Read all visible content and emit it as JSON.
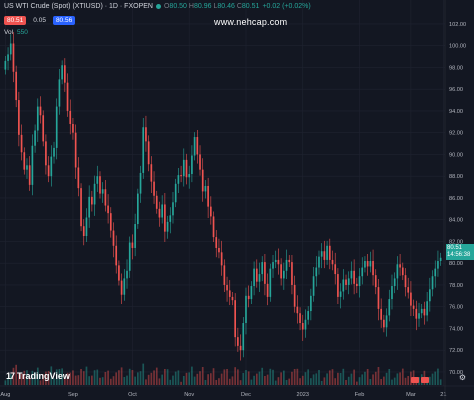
{
  "header": {
    "symbol": "US WTI Crude (Spot) (XTIUSD) · 1D · FXOPEN",
    "open_label": "O",
    "open_value": "80.50",
    "high_label": "H",
    "high_value": "80.96",
    "low_label": "L",
    "low_value": "80.46",
    "close_label": "C",
    "close_value": "80.51",
    "change": "+0.02 (+0.02%)"
  },
  "quote": {
    "bid": "80.51",
    "spread": "0.05",
    "ask": "80.56"
  },
  "volume": {
    "label": "Vol",
    "value": "550"
  },
  "watermark": "www.nehcap.com",
  "logo": {
    "mark": "17",
    "text": "TradingView"
  },
  "last_price": {
    "price": "80.51",
    "countdown": "14:56:38"
  },
  "settings": {
    "icon": "gear-icon"
  },
  "colors": {
    "up": "#26a69a",
    "down": "#ef5350",
    "background": "#131722",
    "grid": "#1f2330"
  },
  "chart_data": {
    "type": "candlestick",
    "title": "US WTI Crude (Spot) (XTIUSD) · 1D · FXOPEN",
    "y_axis": {
      "position": "right",
      "ticks": [
        70.0,
        72.0,
        74.0,
        76.0,
        78.0,
        80.0,
        82.0,
        84.0,
        86.0,
        88.0,
        90.0,
        92.0,
        94.0,
        96.0,
        98.0,
        100.0,
        102.0
      ],
      "ylim": [
        68.8,
        104.2
      ]
    },
    "x_axis": {
      "ticks": [
        "Aug",
        "Sep",
        "Oct",
        "Nov",
        "Dec",
        "2023",
        "Feb",
        "Mar",
        "21"
      ],
      "tick_index": [
        0,
        25,
        47,
        68,
        89,
        110,
        131,
        150,
        162
      ]
    },
    "grid": true,
    "last_value": 80.51,
    "close": [
      98.6,
      99.2,
      100.2,
      97.6,
      95.0,
      91.8,
      90.2,
      88.6,
      89.0,
      87.2,
      90.8,
      92.2,
      94.4,
      93.6,
      91.2,
      89.0,
      88.0,
      89.8,
      90.6,
      94.4,
      96.9,
      98.2,
      96.6,
      94.0,
      92.8,
      92.0,
      88.8,
      86.9,
      83.4,
      82.5,
      84.2,
      86.1,
      85.4,
      87.3,
      88.0,
      86.4,
      86.8,
      85.3,
      84.6,
      83.0,
      81.6,
      79.8,
      78.4,
      77.1,
      78.6,
      79.3,
      81.9,
      81.4,
      83.6,
      86.4,
      88.3,
      92.5,
      91.2,
      89.1,
      87.5,
      86.2,
      85.0,
      84.2,
      85.4,
      82.9,
      83.8,
      84.4,
      85.6,
      87.3,
      88.1,
      88.0,
      89.5,
      87.9,
      88.2,
      89.9,
      91.6,
      90.0,
      88.6,
      86.6,
      87.1,
      85.2,
      84.3,
      82.4,
      81.4,
      81.0,
      79.8,
      78.0,
      77.5,
      76.9,
      76.6,
      73.2,
      72.4,
      72.0,
      74.5,
      77.0,
      76.7,
      77.9,
      79.5,
      78.3,
      79.0,
      80.1,
      78.1,
      76.9,
      79.5,
      80.1,
      80.3,
      79.9,
      78.6,
      79.3,
      80.3,
      80.1,
      78.0,
      76.0,
      75.4,
      74.5,
      73.9,
      74.8,
      75.6,
      77.0,
      78.8,
      79.6,
      80.6,
      81.1,
      80.3,
      81.6,
      80.3,
      79.9,
      79.0,
      76.9,
      77.4,
      78.5,
      78.0,
      78.6,
      79.3,
      78.1,
      77.9,
      78.8,
      79.6,
      80.2,
      79.7,
      80.2,
      78.9,
      77.8,
      75.8,
      74.8,
      74.1,
      75.2,
      76.7,
      77.9,
      78.6,
      79.9,
      79.6,
      78.9,
      77.8,
      77.3,
      76.1,
      75.8,
      74.9,
      75.4,
      75.8,
      75.2,
      76.5,
      77.6,
      78.8,
      79.5,
      80.2,
      80.5
    ]
  }
}
